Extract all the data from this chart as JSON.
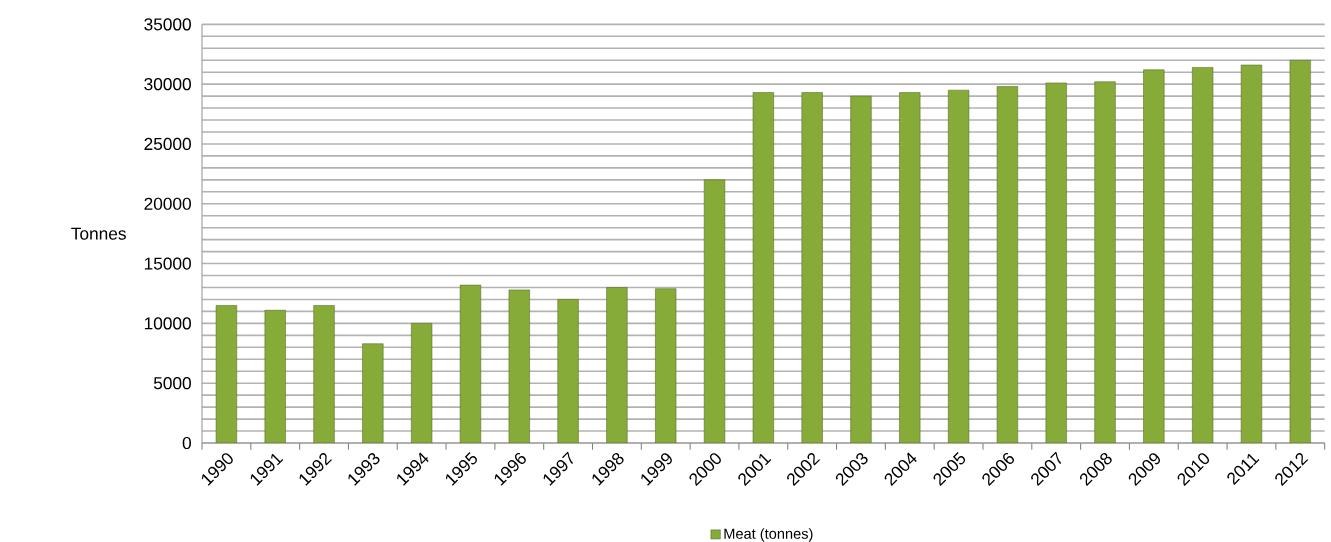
{
  "chart_data": {
    "type": "bar",
    "ylabel": "Tonnes",
    "categories": [
      "1990",
      "1991",
      "1992",
      "1993",
      "1994",
      "1995",
      "1996",
      "1997",
      "1998",
      "1999",
      "2000",
      "2001",
      "2002",
      "2003",
      "2004",
      "2005",
      "2006",
      "2007",
      "2008",
      "2009",
      "2010",
      "2011",
      "2012"
    ],
    "series": [
      {
        "name": "Meat (tonnes)",
        "color": "#86ab38",
        "values": [
          11500,
          11100,
          11500,
          8300,
          10000,
          13200,
          12800,
          12000,
          13000,
          12900,
          22000,
          29300,
          29300,
          29000,
          29300,
          29500,
          29800,
          30100,
          30200,
          31200,
          31400,
          31600,
          32000
        ]
      }
    ],
    "ylim": [
      0,
      35000
    ],
    "yticks": [
      0,
      {
        "value": 1000,
        "label": null
      },
      {
        "value": 2000,
        "label": null
      },
      {
        "value": 3000,
        "label": null
      },
      {
        "value": 4000,
        "label": null
      },
      5000,
      {
        "value": 6000,
        "label": null
      },
      {
        "value": 7000,
        "label": null
      },
      {
        "value": 8000,
        "label": null
      },
      {
        "value": 9000,
        "label": null
      },
      10000,
      {
        "value": 11000,
        "label": null
      },
      {
        "value": 12000,
        "label": null
      },
      {
        "value": 13000,
        "label": null
      },
      {
        "value": 14000,
        "label": null
      },
      15000,
      {
        "value": 16000,
        "label": null
      },
      {
        "value": 17000,
        "label": null
      },
      {
        "value": 18000,
        "label": null
      },
      {
        "value": 19000,
        "label": null
      },
      20000,
      {
        "value": 21000,
        "label": null
      },
      {
        "value": 22000,
        "label": null
      },
      {
        "value": 23000,
        "label": null
      },
      {
        "value": 24000,
        "label": null
      },
      25000,
      {
        "value": 26000,
        "label": null
      },
      {
        "value": 27000,
        "label": null
      },
      {
        "value": 28000,
        "label": null
      },
      {
        "value": 29000,
        "label": null
      },
      30000,
      {
        "value": 31000,
        "label": null
      },
      {
        "value": 32000,
        "label": null
      },
      {
        "value": 33000,
        "label": null
      },
      {
        "value": 34000,
        "label": null
      },
      35000
    ],
    "grid": "y",
    "legend": "bottom"
  }
}
